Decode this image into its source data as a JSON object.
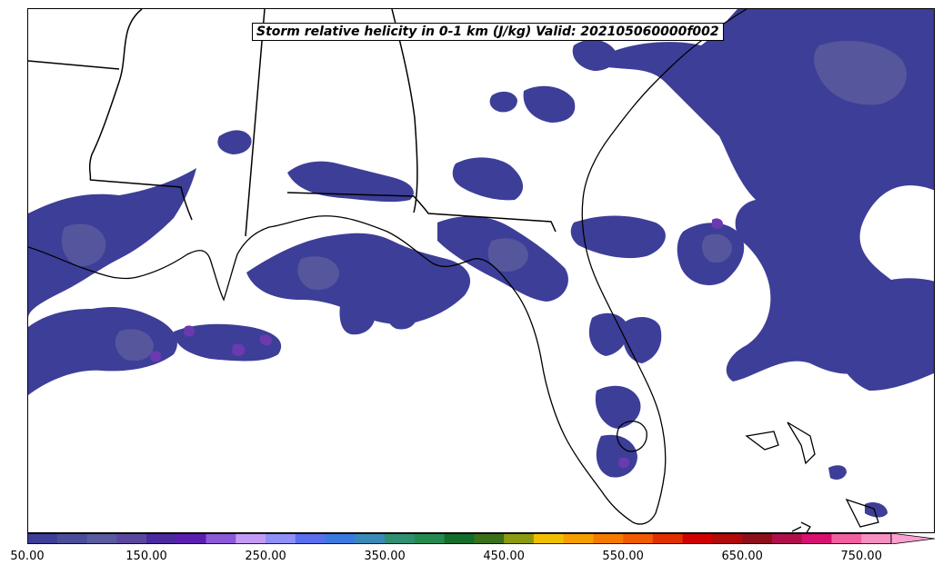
{
  "title": "Storm relative helicity in 0-1 km (J/kg) Valid: 202105060000f002",
  "colorbar": {
    "min": 50,
    "step": 25,
    "extend": "max",
    "tick_values": [
      50,
      150,
      250,
      350,
      450,
      550,
      650,
      750
    ],
    "tick_labels": [
      "50.00",
      "150.00",
      "250.00",
      "350.00",
      "450.00",
      "550.00",
      "650.00",
      "750.00"
    ],
    "colors": [
      "#3d3e98",
      "#4a4d98",
      "#5a5a9e",
      "#5a479e",
      "#4b2aa0",
      "#5b1fb0",
      "#8c59d8",
      "#c39af5",
      "#8f8ff5",
      "#5a6ef0",
      "#3a7ae0",
      "#3a8ab8",
      "#2e9070",
      "#248a50",
      "#126e2a",
      "#3a7018",
      "#8c9a10",
      "#f0c000",
      "#f5a000",
      "#f57a00",
      "#f05a00",
      "#e03000",
      "#d00000",
      "#b00a0a",
      "#8c0f1a",
      "#b0104a",
      "#d81070",
      "#f060a0",
      "#f590c0"
    ],
    "extend_color": "#fca0d0"
  },
  "legend": {
    "position": "bottom",
    "orientation": "horizontal"
  },
  "boundaries": [
    "state-borders",
    "coastlines"
  ]
}
